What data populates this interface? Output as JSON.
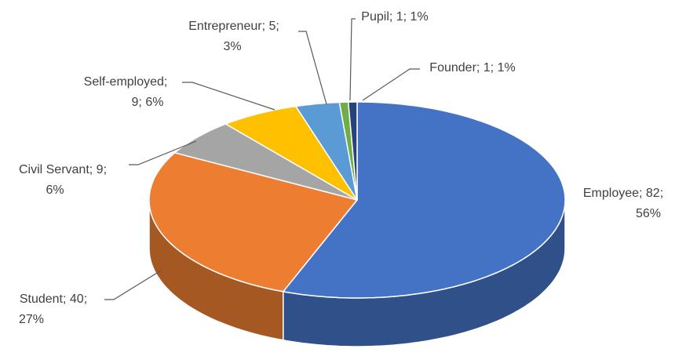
{
  "chart_data": {
    "type": "pie3d",
    "values": [
      82,
      40,
      9,
      9,
      5,
      1,
      1
    ],
    "value_labels": [
      [
        "Employee; 82;",
        "56%"
      ],
      [
        "Student; 40;",
        "27%"
      ],
      [
        "Civil Servant; 9;",
        "6%"
      ],
      [
        "Self-employed;",
        "9; 6%"
      ],
      [
        "Entrepreneur; 5;",
        "3%"
      ],
      [
        "Pupil; 1; 1%"
      ],
      [
        "Founder; 1; 1%"
      ]
    ],
    "colors": [
      "#4472c4",
      "#ed7d31",
      "#a5a5a5",
      "#ffc000",
      "#5b9bd5",
      "#70ad47",
      "#264478"
    ]
  }
}
